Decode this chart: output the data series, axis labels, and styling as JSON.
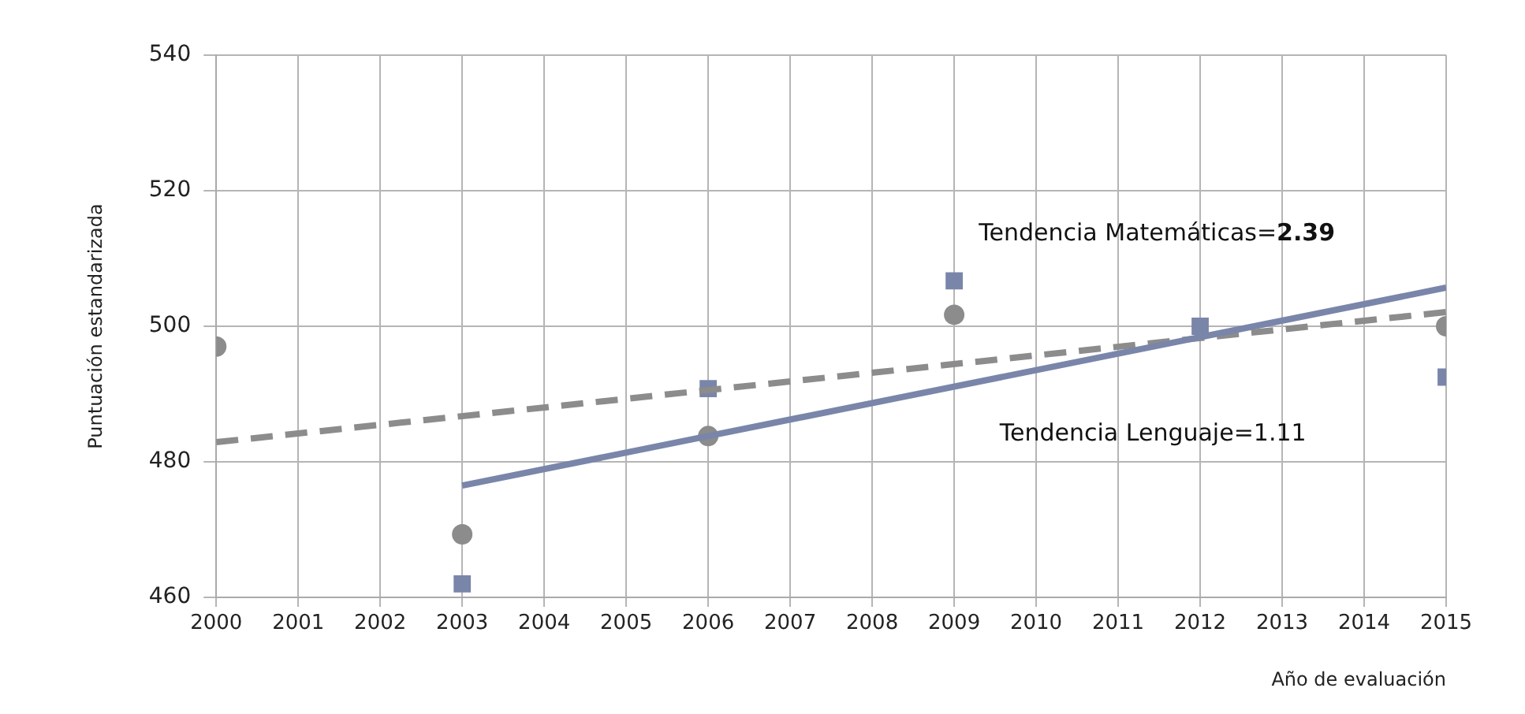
{
  "chart_data": {
    "type": "scatter",
    "xlabel": "Año de evaluación",
    "ylabel": "Puntuación estandarizada",
    "xlim": [
      2000,
      2015
    ],
    "xticks": [
      2000,
      2001,
      2002,
      2003,
      2004,
      2005,
      2006,
      2007,
      2008,
      2009,
      2010,
      2011,
      2012,
      2013,
      2014,
      2015
    ],
    "ylim": [
      460,
      540
    ],
    "yticks": [
      460,
      480,
      500,
      520,
      540
    ],
    "grid": true,
    "legend": false,
    "series": [
      {
        "type": "line",
        "color": "#7a85aa",
        "x": [
          2003,
          2015
        ],
        "values": [
          476.5,
          505.7
        ],
        "line_style": "solid",
        "marker": "none"
      },
      {
        "type": "line",
        "color": "#8c8c8c",
        "x": [
          2000,
          2015
        ],
        "values": [
          482.9,
          502.1
        ],
        "line_style": "dashed",
        "marker": "none"
      },
      {
        "type": "scatter",
        "color": "#8c8c8c",
        "marker": "circle",
        "x": [
          2000,
          2003,
          2006,
          2009,
          2012,
          2015
        ],
        "values": [
          497,
          469.3,
          483.8,
          501.7,
          null,
          500
        ]
      },
      {
        "type": "scatter",
        "color": "#7a85aa",
        "marker": "square",
        "x": [
          2003,
          2006,
          2009,
          2012,
          2015
        ],
        "values": [
          462,
          490.8,
          506.7,
          500,
          492.5
        ]
      }
    ],
    "annotations": [
      "Tendencia Matemáticas=2.39",
      "Tendencia Lenguaje=1.11"
    ]
  }
}
